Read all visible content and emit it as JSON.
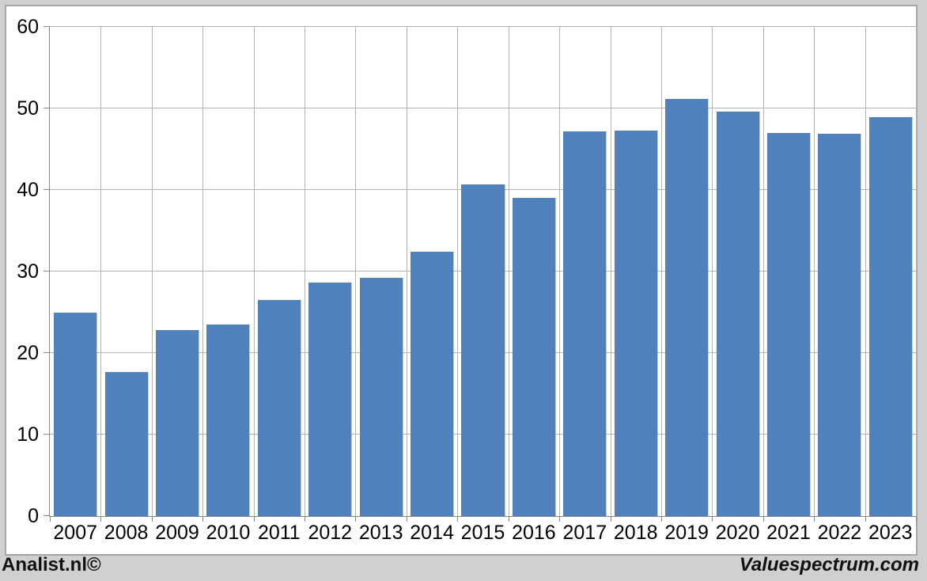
{
  "chart_data": {
    "type": "bar",
    "title": "",
    "xlabel": "",
    "ylabel": "",
    "categories": [
      "2007",
      "2008",
      "2009",
      "2010",
      "2011",
      "2012",
      "2013",
      "2014",
      "2015",
      "2016",
      "2017",
      "2018",
      "2019",
      "2020",
      "2021",
      "2022",
      "2023"
    ],
    "values": [
      25.0,
      17.7,
      22.8,
      23.5,
      26.5,
      28.6,
      29.2,
      32.4,
      40.7,
      39.0,
      47.2,
      47.3,
      51.2,
      49.6,
      47.0,
      46.9,
      48.9
    ],
    "ylim": [
      0,
      60
    ],
    "yticks": [
      0,
      10,
      20,
      30,
      40,
      50,
      60
    ],
    "legend": "none",
    "grid": "horizontal-and-vertical",
    "bar_color": "#4f81bd",
    "gridline_color": "#b3b3b3",
    "axis_color": "#868686",
    "plot_background": "#ffffff",
    "page_background": "#d0d0d0"
  },
  "footer": {
    "left_brand": "Analist.nl©",
    "right_brand": "Valuespectrum.com"
  }
}
